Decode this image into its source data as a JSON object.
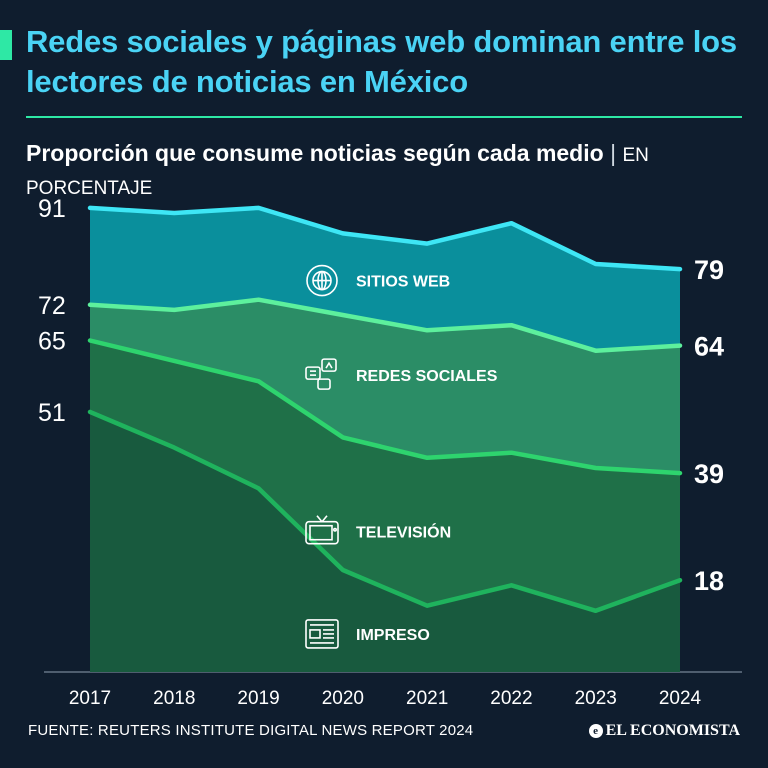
{
  "header": {
    "title": "Redes sociales y páginas web dominan entre los lectores de noticias en México",
    "subtitle_main": "Proporción que consume noticias según cada medio",
    "subtitle_separator": "|",
    "subtitle_unit": "EN PORCENTAJE"
  },
  "chart_data": {
    "type": "area",
    "title": "Proporción que consume noticias según cada medio",
    "unit": "EN PORCENTAJE",
    "x": [
      "2017",
      "2018",
      "2019",
      "2020",
      "2021",
      "2022",
      "2023",
      "2024"
    ],
    "ylim": [
      0,
      100
    ],
    "series": [
      {
        "name": "SITIOS WEB",
        "icon": "globe-icon",
        "values": [
          91,
          90,
          91,
          86,
          84,
          88,
          80,
          79
        ],
        "start_label": "91",
        "end_label": "79",
        "fill": "#0a8f9c",
        "line": "#3ee6f5"
      },
      {
        "name": "REDES SOCIALES",
        "icon": "social-icon",
        "values": [
          72,
          71,
          73,
          70,
          67,
          68,
          63,
          64
        ],
        "start_label": "72",
        "end_label": "64",
        "fill": "#2b8d66",
        "line": "#5df09d"
      },
      {
        "name": "TELEVISIÓN",
        "icon": "tv-icon",
        "values": [
          65,
          61,
          57,
          46,
          42,
          43,
          40,
          39
        ],
        "start_label": "65",
        "end_label": "39",
        "fill": "#1f7048",
        "line": "#2ed46e"
      },
      {
        "name": "IMPRESO",
        "icon": "newspaper-icon",
        "values": [
          51,
          44,
          36,
          20,
          13,
          17,
          12,
          18
        ],
        "start_label": "51",
        "end_label": "18",
        "fill": "#185a3e",
        "line": "#1fb35d"
      }
    ]
  },
  "footer": {
    "source": "FUENTE: REUTERS INSTITUTE DIGITAL NEWS REPORT 2024",
    "brand": "EL ECONOMISTA",
    "brand_mark": "e"
  }
}
